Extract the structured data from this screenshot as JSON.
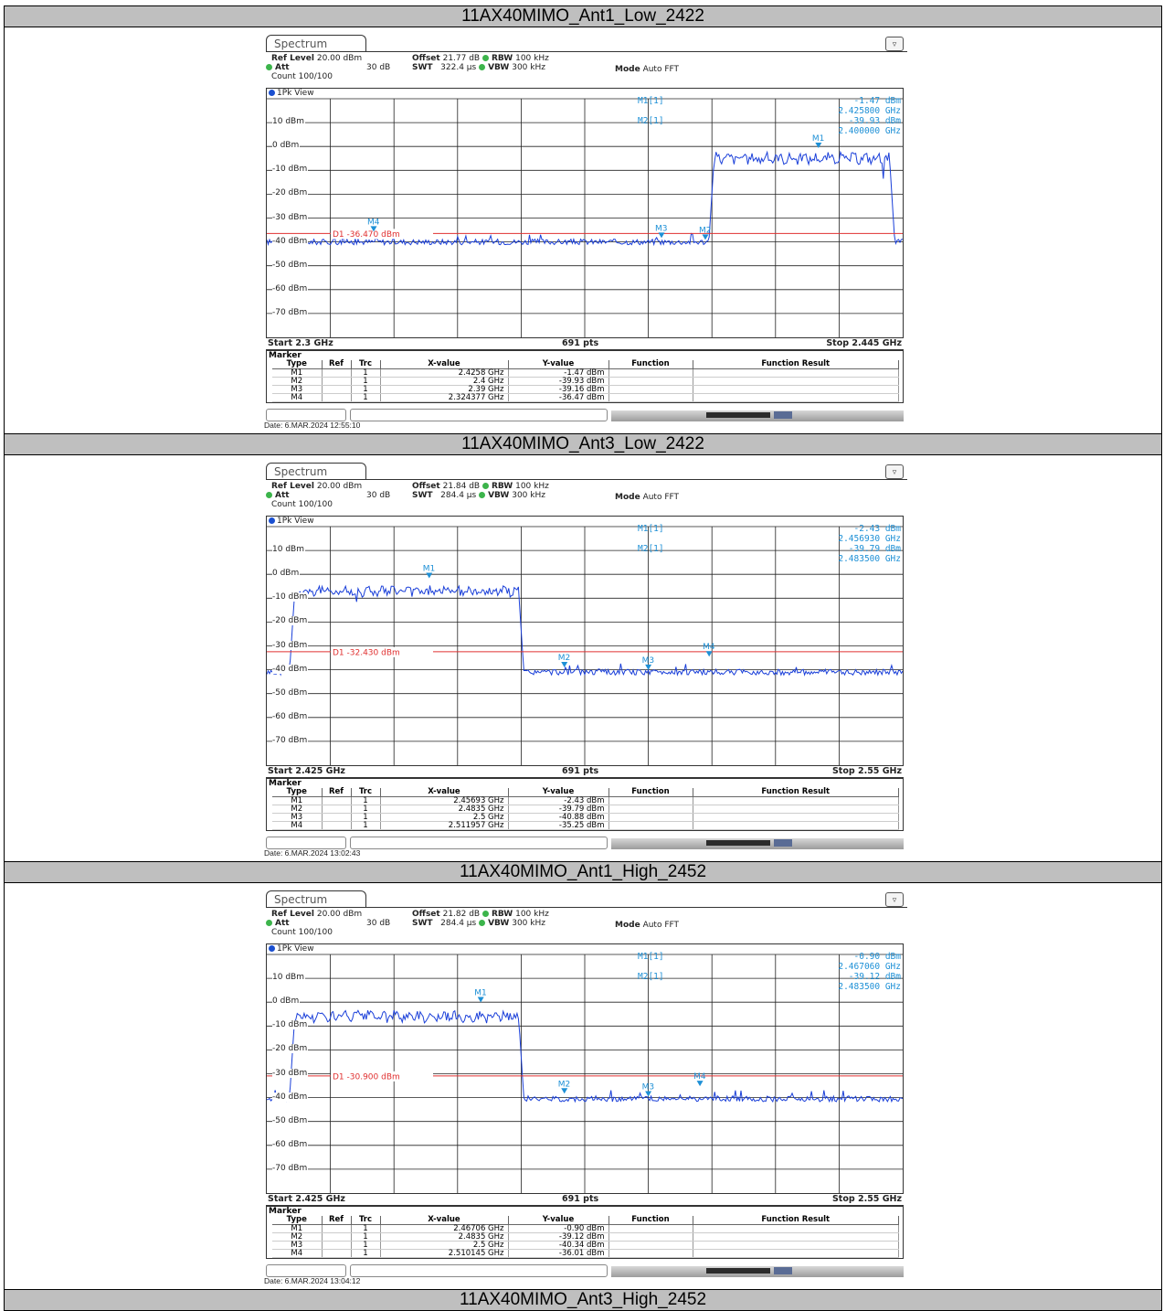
{
  "colors": {
    "trace": "#1a3fd9",
    "display_line": "#e03030",
    "marker": "#1e90d6"
  },
  "sections": [
    {
      "title": "11AX40MIMO_Ant1_Low_2422",
      "tab_label": "Spectrum",
      "ref_level_label": "Ref Level",
      "ref_level": "20.00 dBm",
      "att_label": "Att",
      "att": "30 dB",
      "offset_label": "Offset",
      "offset": "21.77 dB",
      "swt_label": "SWT",
      "swt": "322.4 µs",
      "rbw_label": "RBW",
      "rbw": "100 kHz",
      "vbw_label": "VBW",
      "vbw": "300 kHz",
      "mode_label": "Mode",
      "mode": "Auto FFT",
      "count": "Count 100/100",
      "view": "1Pk View",
      "y_ticks": [
        "10 dBm",
        "0 dBm",
        "-10 dBm",
        "-20 dBm",
        "-30 dBm",
        "-40 dBm",
        "-50 dBm",
        "-60 dBm",
        "-70 dBm"
      ],
      "d1_label": "D1 -36.470 dBm",
      "m1_tag": "M1[1]",
      "m1_val": "-1.47 dBm",
      "m1_freq": "2.425800 GHz",
      "m2_tag": "M2[1]",
      "m2_val": "-39.93 dBm",
      "m2_freq": "2.400000 GHz",
      "start": "Start 2.3 GHz",
      "pts": "691 pts",
      "stop": "Stop 2.445 GHz",
      "marker_title": "Marker",
      "headers": [
        "Type",
        "Ref",
        "Trc",
        "X-value",
        "Y-value",
        "Function",
        "Function Result"
      ],
      "rows": [
        [
          "M1",
          "",
          "1",
          "2.4258 GHz",
          "-1.47 dBm",
          "",
          ""
        ],
        [
          "M2",
          "",
          "1",
          "2.4 GHz",
          "-39.93 dBm",
          "",
          ""
        ],
        [
          "M3",
          "",
          "1",
          "2.39 GHz",
          "-39.16 dBm",
          "",
          ""
        ],
        [
          "M4",
          "",
          "1",
          "2.324377 GHz",
          "-36.47 dBm",
          "",
          ""
        ]
      ],
      "date": "Date: 6.MAR.2024  12:55:10",
      "chart_data": {
        "type": "line",
        "x_range_ghz": [
          2.3,
          2.445
        ],
        "y_range_dbm": [
          -80,
          20
        ],
        "display_line_dbm": -36.47,
        "signal_band_ghz": [
          2.402,
          2.442
        ],
        "signal_level_dbm": -5,
        "noise_floor_dbm": -40,
        "markers": [
          {
            "name": "M1",
            "x": 2.4258,
            "y": -1.47
          },
          {
            "name": "M2",
            "x": 2.4,
            "y": -39.93
          },
          {
            "name": "M3",
            "x": 2.39,
            "y": -39.16
          },
          {
            "name": "M4",
            "x": 2.324377,
            "y": -36.47
          }
        ]
      }
    },
    {
      "title": "11AX40MIMO_Ant3_Low_2422",
      "tab_label": "Spectrum",
      "ref_level_label": "Ref Level",
      "ref_level": "20.00 dBm",
      "att_label": "Att",
      "att": "30 dB",
      "offset_label": "Offset",
      "offset": "21.84 dB",
      "swt_label": "SWT",
      "swt": "284.4 µs",
      "rbw_label": "RBW",
      "rbw": "100 kHz",
      "vbw_label": "VBW",
      "vbw": "300 kHz",
      "mode_label": "Mode",
      "mode": "Auto FFT",
      "count": "Count 100/100",
      "view": "1Pk View",
      "y_ticks": [
        "10 dBm",
        "0 dBm",
        "-10 dBm",
        "-20 dBm",
        "-30 dBm",
        "-40 dBm",
        "-50 dBm",
        "-60 dBm",
        "-70 dBm"
      ],
      "d1_label": "D1 -32.430 dBm",
      "m1_tag": "M1[1]",
      "m1_val": "-2.43 dBm",
      "m1_freq": "2.456930 GHz",
      "m2_tag": "M2[1]",
      "m2_val": "-39.79 dBm",
      "m2_freq": "2.483500 GHz",
      "start": "Start 2.425 GHz",
      "pts": "691 pts",
      "stop": "Stop 2.55 GHz",
      "marker_title": "Marker",
      "headers": [
        "Type",
        "Ref",
        "Trc",
        "X-value",
        "Y-value",
        "Function",
        "Function Result"
      ],
      "rows": [
        [
          "M1",
          "",
          "1",
          "2.45693 GHz",
          "-2.43 dBm",
          "",
          ""
        ],
        [
          "M2",
          "",
          "1",
          "2.4835 GHz",
          "-39.79 dBm",
          "",
          ""
        ],
        [
          "M3",
          "",
          "1",
          "2.5 GHz",
          "-40.88 dBm",
          "",
          ""
        ],
        [
          "M4",
          "",
          "1",
          "2.511957 GHz",
          "-35.25 dBm",
          "",
          ""
        ]
      ],
      "date": "Date: 6.MAR.2024  13:02:43",
      "chart_data": {
        "type": "line",
        "x_range_ghz": [
          2.425,
          2.55
        ],
        "y_range_dbm": [
          -80,
          20
        ],
        "display_line_dbm": -32.43,
        "signal_band_ghz": [
          2.4305,
          2.4745
        ],
        "signal_level_dbm": -7,
        "noise_floor_dbm": -41,
        "markers": [
          {
            "name": "M1",
            "x": 2.45693,
            "y": -2.43
          },
          {
            "name": "M2",
            "x": 2.4835,
            "y": -39.79
          },
          {
            "name": "M3",
            "x": 2.5,
            "y": -40.88
          },
          {
            "name": "M4",
            "x": 2.511957,
            "y": -35.25
          }
        ]
      }
    },
    {
      "title": "11AX40MIMO_Ant1_High_2452",
      "tab_label": "Spectrum",
      "ref_level_label": "Ref Level",
      "ref_level": "20.00 dBm",
      "att_label": "Att",
      "att": "30 dB",
      "offset_label": "Offset",
      "offset": "21.82 dB",
      "swt_label": "SWT",
      "swt": "284.4 µs",
      "rbw_label": "RBW",
      "rbw": "100 kHz",
      "vbw_label": "VBW",
      "vbw": "300 kHz",
      "mode_label": "Mode",
      "mode": "Auto FFT",
      "count": "Count 100/100",
      "view": "1Pk View",
      "y_ticks": [
        "10 dBm",
        "0 dBm",
        "-10 dBm",
        "-20 dBm",
        "-30 dBm",
        "-40 dBm",
        "-50 dBm",
        "-60 dBm",
        "-70 dBm"
      ],
      "d1_label": "D1 -30.900 dBm",
      "m1_tag": "M1[1]",
      "m1_val": "-0.90 dBm",
      "m1_freq": "2.467060 GHz",
      "m2_tag": "M2[1]",
      "m2_val": "-39.12 dBm",
      "m2_freq": "2.483500 GHz",
      "start": "Start 2.425 GHz",
      "pts": "691 pts",
      "stop": "Stop 2.55 GHz",
      "marker_title": "Marker",
      "headers": [
        "Type",
        "Ref",
        "Trc",
        "X-value",
        "Y-value",
        "Function",
        "Function Result"
      ],
      "rows": [
        [
          "M1",
          "",
          "1",
          "2.46706 GHz",
          "-0.90 dBm",
          "",
          ""
        ],
        [
          "M2",
          "",
          "1",
          "2.4835 GHz",
          "-39.12 dBm",
          "",
          ""
        ],
        [
          "M3",
          "",
          "1",
          "2.5 GHz",
          "-40.34 dBm",
          "",
          ""
        ],
        [
          "M4",
          "",
          "1",
          "2.510145 GHz",
          "-36.01 dBm",
          "",
          ""
        ]
      ],
      "date": "Date: 6.MAR.2024  13:04:12",
      "chart_data": {
        "type": "line",
        "x_range_ghz": [
          2.425,
          2.55
        ],
        "y_range_dbm": [
          -80,
          20
        ],
        "display_line_dbm": -30.9,
        "signal_band_ghz": [
          2.4305,
          2.4745
        ],
        "signal_level_dbm": -6,
        "noise_floor_dbm": -40.5,
        "markers": [
          {
            "name": "M1",
            "x": 2.46706,
            "y": -0.9
          },
          {
            "name": "M2",
            "x": 2.4835,
            "y": -39.12
          },
          {
            "name": "M3",
            "x": 2.5,
            "y": -40.34
          },
          {
            "name": "M4",
            "x": 2.510145,
            "y": -36.01
          }
        ]
      }
    }
  ],
  "last_title": "11AX40MIMO_Ant3_High_2452"
}
